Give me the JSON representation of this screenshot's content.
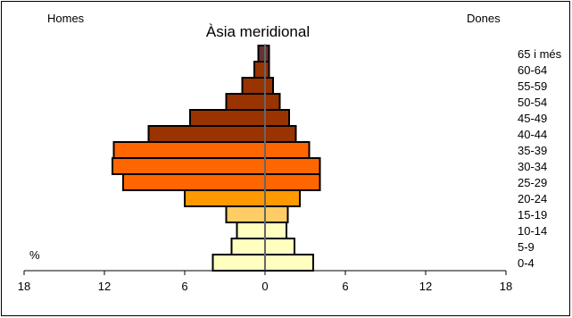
{
  "chart_data": {
    "type": "bar",
    "orientation": "horizontal",
    "subtype": "population-pyramid",
    "title": "Àsia meridional",
    "left_label": "Homes",
    "right_label": "Dones",
    "unit_label": "%",
    "categories": [
      "0-4",
      "5-9",
      "10-14",
      "15-19",
      "20-24",
      "25-29",
      "30-34",
      "35-39",
      "40-44",
      "45-49",
      "50-54",
      "55-59",
      "60-64",
      "65 i més"
    ],
    "series": [
      {
        "name": "Homes",
        "values": [
          3.9,
          2.5,
          2.1,
          2.9,
          6.0,
          10.6,
          11.4,
          11.3,
          8.7,
          5.6,
          2.9,
          1.7,
          0.8,
          0.5
        ]
      },
      {
        "name": "Dones",
        "values": [
          3.6,
          2.2,
          1.6,
          1.7,
          2.6,
          4.1,
          4.1,
          3.3,
          2.3,
          1.8,
          1.1,
          0.6,
          0.3,
          0.3
        ]
      }
    ],
    "bar_colors": [
      "#ffffc0",
      "#ffffc0",
      "#ffffc0",
      "#ffcc66",
      "#ff9900",
      "#ff6600",
      "#ff6600",
      "#ff6600",
      "#993300",
      "#993300",
      "#993300",
      "#993300",
      "#993300",
      "#663333"
    ],
    "x_ticks": [
      {
        "value": -18,
        "label": "18"
      },
      {
        "value": -12,
        "label": "12"
      },
      {
        "value": -6,
        "label": "6"
      },
      {
        "value": 0,
        "label": "0"
      },
      {
        "value": 6,
        "label": "6"
      },
      {
        "value": 12,
        "label": "12"
      },
      {
        "value": 18,
        "label": "18"
      }
    ],
    "xlim": [
      -18,
      18
    ],
    "grid": false
  }
}
